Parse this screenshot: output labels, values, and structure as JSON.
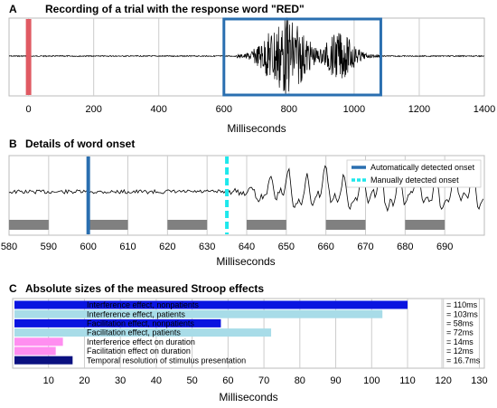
{
  "chart_data": [
    {
      "panel": "A",
      "type": "line",
      "title": "Recording of a trial with the response word \"RED\"",
      "xlabel": "Milliseconds",
      "xlim": [
        -60,
        1400
      ],
      "xticks": [
        0,
        200,
        400,
        600,
        800,
        1000,
        1200,
        1400
      ],
      "grid": true,
      "markers": [
        {
          "kind": "stimulus-onset",
          "x": 0,
          "color": "#e05a63"
        },
        {
          "kind": "response-box",
          "x_start": 600,
          "x_end": 1082,
          "color": "#2a6fb0"
        }
      ],
      "waveform": {
        "color": "#000000",
        "burst_start": 640,
        "burst_end": 1080
      }
    },
    {
      "panel": "B",
      "type": "line",
      "title": "Details of word onset",
      "xlabel": "Milliseconds",
      "xlim": [
        580,
        700
      ],
      "xticks": [
        580,
        590,
        600,
        610,
        620,
        630,
        640,
        650,
        660,
        670,
        680,
        690
      ],
      "grid": true,
      "series": [
        {
          "name": "Automatically detected onset",
          "x": 600,
          "color": "#2a6fb0",
          "style": "solid"
        },
        {
          "name": "Manually detected onset",
          "x": 635,
          "color": "#1ee8ec",
          "style": "dashed"
        }
      ],
      "legend_position": "top-right",
      "bar_strip": [
        [
          580,
          590
        ],
        [
          600,
          610
        ],
        [
          620,
          630
        ],
        [
          640,
          650
        ],
        [
          660,
          670
        ],
        [
          680,
          690
        ]
      ]
    },
    {
      "panel": "C",
      "type": "bar",
      "orientation": "horizontal",
      "title": "Absolute sizes of the measured Stroop effects",
      "xlabel": "Milliseconds",
      "xlim": [
        0,
        130
      ],
      "xticks": [
        10,
        20,
        30,
        40,
        50,
        60,
        70,
        80,
        90,
        100,
        110,
        120,
        130
      ],
      "grid": true,
      "bars": [
        {
          "label": "Interference effect, nonpatients",
          "value": 110,
          "display": "= 110ms",
          "color": "#0a14e0",
          "text_color": "#ffffff"
        },
        {
          "label": "Interference effect, patients",
          "value": 103,
          "display": "= 103ms",
          "color": "#a8dce8",
          "text_color": "#000000"
        },
        {
          "label": "Facilitation effect, nonpatients",
          "value": 58,
          "display": "= 58ms",
          "color": "#0a14e0",
          "text_color": "#ffffff"
        },
        {
          "label": "Facilitation effect, patients",
          "value": 72,
          "display": "= 72ms",
          "color": "#a8dce8",
          "text_color": "#000000"
        },
        {
          "label": "Interference effect on duration",
          "value": 14,
          "display": "= 14ms",
          "color": "#ff8ef0",
          "text_color": "#000000"
        },
        {
          "label": "Facilitation effect on duration",
          "value": 12,
          "display": "= 12ms",
          "color": "#ff8ef0",
          "text_color": "#000000"
        },
        {
          "label": "Temporal resolution of stimulus presentation",
          "value": 16.7,
          "display": "= 16.7ms",
          "color": "#0a1080",
          "text_color": "#000000"
        }
      ]
    }
  ]
}
